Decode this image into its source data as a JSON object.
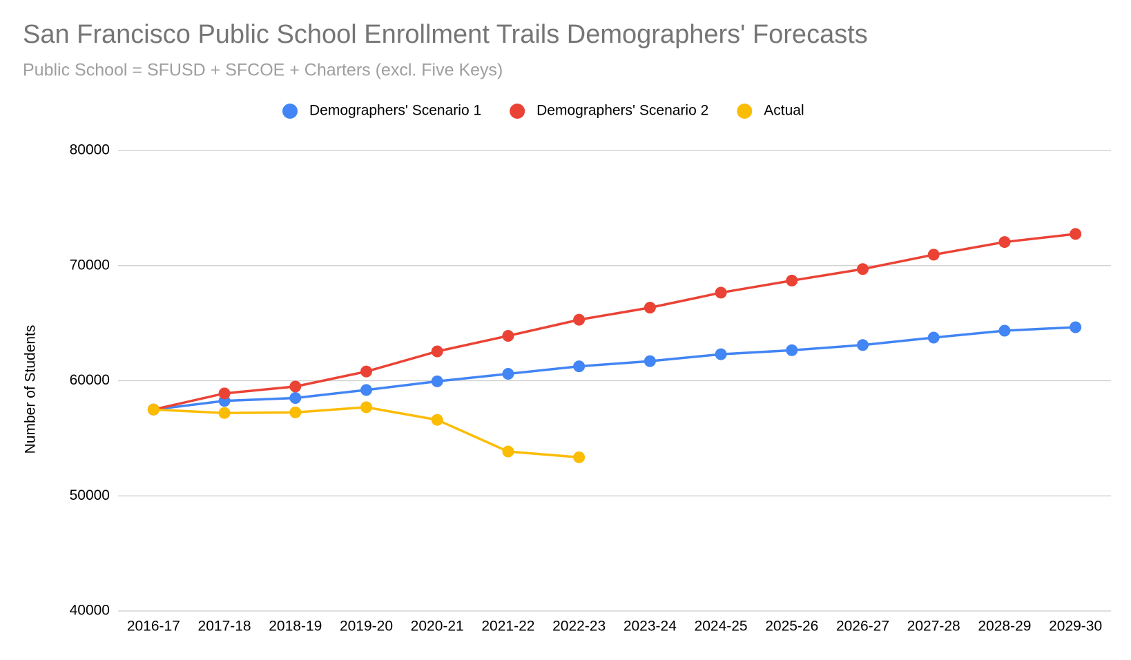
{
  "chart_data": {
    "type": "line",
    "title": "San Francisco Public School Enrollment Trails Demographers' Forecasts",
    "subtitle": "Public School = SFUSD + SFCOE + Charters (excl. Five Keys)",
    "y_label": "Number of Students",
    "categories": [
      "2016-17",
      "2017-18",
      "2018-19",
      "2019-20",
      "2020-21",
      "2021-22",
      "2022-23",
      "2023-24",
      "2024-25",
      "2025-26",
      "2026-27",
      "2027-28",
      "2028-29",
      "2029-30"
    ],
    "series": [
      {
        "name": "Demographers' Scenario 1",
        "color": "#4285f4",
        "values": [
          57500,
          58250,
          58500,
          59200,
          59950,
          60600,
          61250,
          61700,
          62300,
          62650,
          63100,
          63750,
          64350,
          64650
        ]
      },
      {
        "name": "Demographers' Scenario 2",
        "color": "#ea4335",
        "values": [
          57500,
          58900,
          59500,
          60800,
          62550,
          63900,
          65300,
          66350,
          67650,
          68700,
          69700,
          70950,
          72050,
          72750
        ]
      },
      {
        "name": "Actual",
        "color": "#fbbc04",
        "values": [
          57500,
          57200,
          57250,
          57700,
          56600,
          53850,
          53350,
          null,
          null,
          null,
          null,
          null,
          null,
          null
        ]
      }
    ],
    "ylim": [
      40000,
      80000
    ],
    "yticks": [
      40000,
      50000,
      60000,
      70000,
      80000
    ],
    "grid": true,
    "legend": "top"
  }
}
